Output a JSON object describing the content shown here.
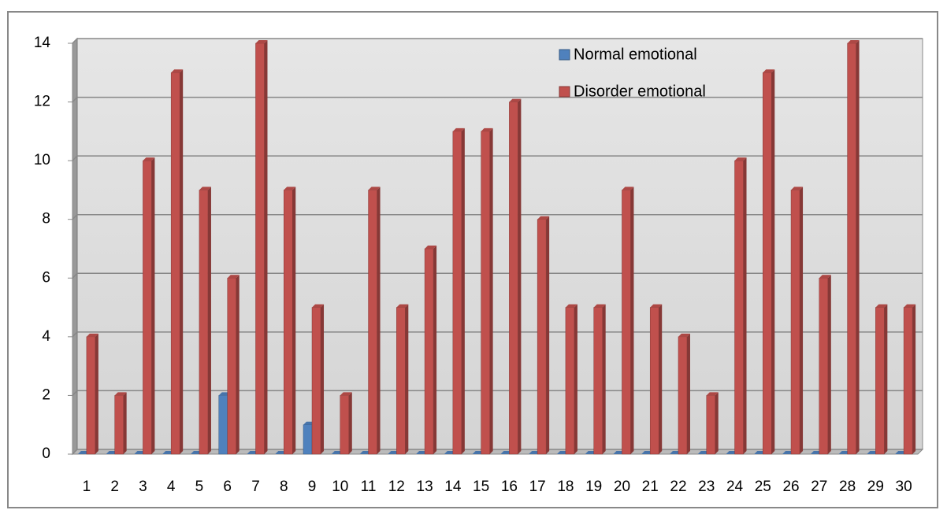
{
  "chart_data": {
    "type": "bar",
    "categories": [
      "1",
      "2",
      "3",
      "4",
      "5",
      "6",
      "7",
      "8",
      "9",
      "10",
      "11",
      "12",
      "13",
      "14",
      "15",
      "16",
      "17",
      "18",
      "19",
      "20",
      "21",
      "22",
      "23",
      "24",
      "25",
      "26",
      "27",
      "28",
      "29",
      "30"
    ],
    "series": [
      {
        "name": "Normal emotional",
        "color": "#4f81bd",
        "values": [
          0,
          0,
          0,
          0,
          0,
          2,
          0,
          0,
          1,
          0,
          0,
          0,
          0,
          0,
          0,
          0,
          0,
          0,
          0,
          0,
          0,
          0,
          0,
          0,
          0,
          0,
          0,
          0,
          0,
          0
        ]
      },
      {
        "name": "Disorder emotional",
        "color": "#c0504d",
        "values": [
          4,
          2,
          10,
          13,
          9,
          6,
          14,
          9,
          5,
          2,
          9,
          5,
          7,
          11,
          11,
          12,
          8,
          5,
          5,
          9,
          5,
          4,
          2,
          10,
          13,
          9,
          6,
          14,
          5,
          5
        ]
      }
    ],
    "ylim": [
      0,
      14
    ],
    "yticks": [
      0,
      2,
      4,
      6,
      8,
      10,
      12,
      14
    ],
    "grid": true
  }
}
